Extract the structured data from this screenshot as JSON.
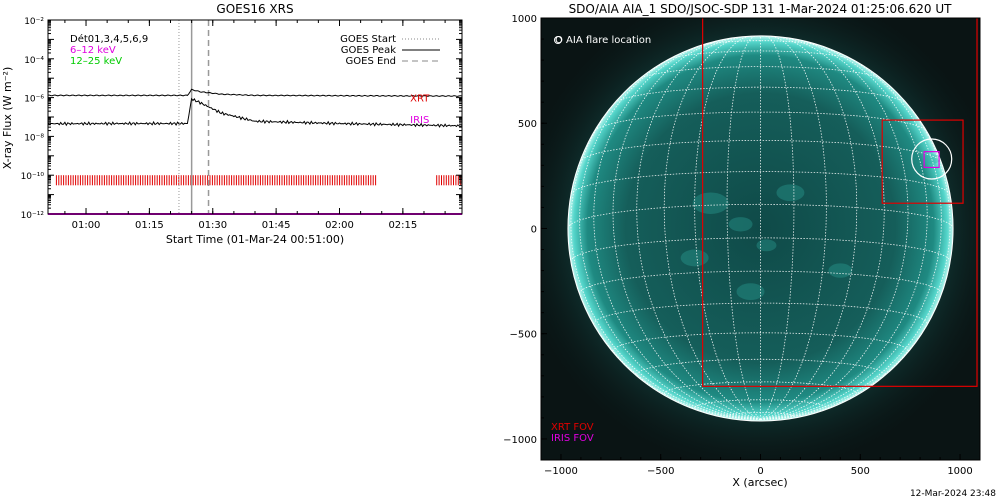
{
  "footer_timestamp": "12-Mar-2024 23:48",
  "chart_data": [
    {
      "type": "line",
      "title": "GOES16 XRS",
      "xlabel": "Start Time (01-Mar-24 00:51:00)",
      "ylabel": "X-ray Flux (W m⁻²)",
      "y_scale": "log",
      "ylim": [
        1e-12,
        0.01
      ],
      "ytick_labels": [
        "10⁻¹²",
        "10⁻¹⁰",
        "10⁻⁸",
        "10⁻⁶",
        "10⁻⁴",
        "10⁻²"
      ],
      "xlim": [
        "00:51",
        "02:29"
      ],
      "xtick_labels": [
        "01:00",
        "01:15",
        "01:30",
        "01:45",
        "02:00",
        "02:15"
      ],
      "legend_left": [
        {
          "text": "Dét01,3,4,5,6,9",
          "color": "#000000"
        },
        {
          "text": "6–12 keV",
          "color": "#e000e0"
        },
        {
          "text": "12–25 keV",
          "color": "#00cc00"
        }
      ],
      "legend_right": [
        {
          "text": "GOES Start",
          "style": "dotted"
        },
        {
          "text": "GOES Peak",
          "style": "solid"
        },
        {
          "text": "GOES End",
          "style": "dashed"
        }
      ],
      "event_times": {
        "start": "01:22",
        "peak": "01:25",
        "end": "01:29"
      },
      "series": [
        {
          "name": "",
          "color": "#000000",
          "x": [
            "00:51",
            "01:10",
            "01:24",
            "01:25",
            "01:27",
            "01:32",
            "01:40",
            "02:00",
            "02:29"
          ],
          "y": [
            1.3e-06,
            1.3e-06,
            1.3e-06,
            2.6e-06,
            2e-06,
            1.5e-06,
            1.3e-06,
            1.25e-06,
            1.2e-06
          ]
        },
        {
          "name": "",
          "color": "#000000",
          "x": [
            "00:51",
            "01:10",
            "01:24",
            "01:25",
            "01:27",
            "01:32",
            "01:40",
            "02:00",
            "02:29"
          ],
          "y": [
            4.5e-08,
            4.6e-08,
            4.6e-08,
            8.5e-07,
            5.5e-07,
            1.6e-07,
            6e-08,
            4.6e-08,
            3.5e-08
          ]
        },
        {
          "name": "",
          "color": "#e000e0",
          "x": [
            "00:51",
            "02:29"
          ],
          "y": [
            1e-12,
            1e-12
          ]
        }
      ],
      "annotations": [
        {
          "text": "XRT",
          "color": "#e00000",
          "x": "02:19",
          "y": 1e-06
        },
        {
          "text": "IRIS",
          "color": "#e000e0",
          "x": "02:19",
          "y": 8e-08
        }
      ],
      "xrt_observation_bars": {
        "color": "#e00000",
        "y_range": [
          3e-11,
          1e-10
        ],
        "intervals": [
          [
            "00:53",
            "02:09"
          ],
          [
            "02:23",
            "02:29"
          ]
        ]
      }
    },
    {
      "type": "image",
      "title": "SDO/AIA AIA_1 SDO/JSOC-SDP 131  1-Mar-2024 01:25:06.620 UT",
      "xlabel": "X (arcsec)",
      "xlim": [
        -1100,
        1100
      ],
      "ylim": [
        -1100,
        1000
      ],
      "xtick_labels": [
        "−1000",
        "−500",
        "0",
        "500",
        "1000"
      ],
      "ytick_labels": [
        "1000",
        "500",
        "0",
        "−500",
        "−1000"
      ],
      "legend": "O AIA flare location",
      "fov_labels": [
        {
          "text": "XRT FOV",
          "color": "#e00000"
        },
        {
          "text": "IRIS FOV",
          "color": "#e000e0"
        }
      ],
      "solar_radius_arcsec": 965,
      "boxes": [
        {
          "name": "XRT FOV",
          "color": "#e00000",
          "x": [
            -290,
            1085
          ],
          "y": [
            -750,
            1095
          ]
        },
        {
          "name": "XRT FOV",
          "color": "#e00000",
          "x": [
            610,
            1015
          ],
          "y": [
            120,
            515
          ]
        },
        {
          "name": "IRIS FOV",
          "color": "#e000e0",
          "x": [
            820,
            895
          ],
          "y": [
            290,
            365
          ]
        }
      ],
      "flare_location": {
        "x": 858,
        "y": 330
      }
    }
  ]
}
